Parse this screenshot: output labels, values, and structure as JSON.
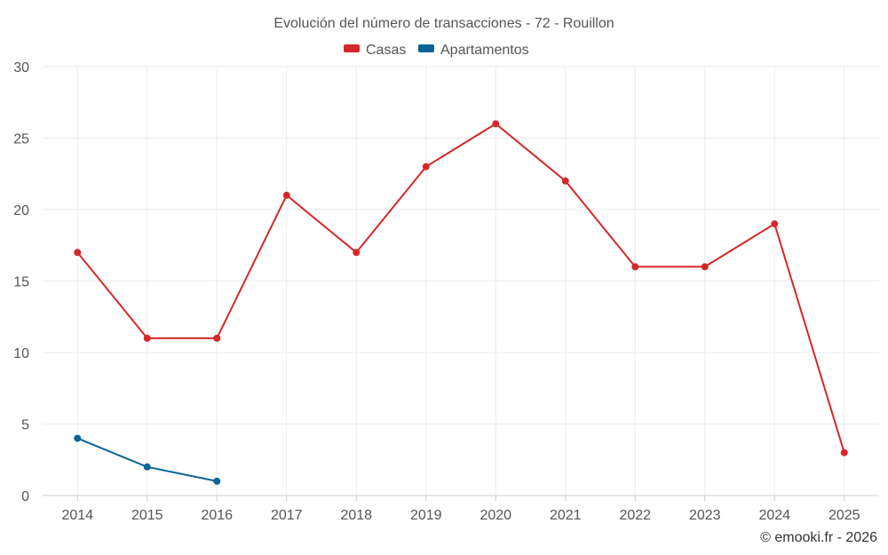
{
  "chart_data": {
    "type": "line",
    "title": "Evolución del número de transacciones - 72 - Rouillon",
    "categories": [
      "2014",
      "2015",
      "2016",
      "2017",
      "2018",
      "2019",
      "2020",
      "2021",
      "2022",
      "2023",
      "2024",
      "2025"
    ],
    "ylim": [
      0,
      30
    ],
    "yticks": [
      0,
      5,
      10,
      15,
      20,
      25,
      30
    ],
    "grid": true,
    "legend_position": "top-center",
    "series": [
      {
        "name": "Casas",
        "color": "#d62728",
        "values": [
          17,
          11,
          11,
          21,
          17,
          23,
          26,
          22,
          16,
          16,
          19,
          3
        ]
      },
      {
        "name": "Apartamentos",
        "color": "#0a6496",
        "values": [
          4,
          2,
          1,
          null,
          null,
          null,
          null,
          null,
          null,
          null,
          null,
          null
        ]
      }
    ],
    "xlabel": "",
    "ylabel": ""
  },
  "credit": "© emooki.fr - 2026"
}
